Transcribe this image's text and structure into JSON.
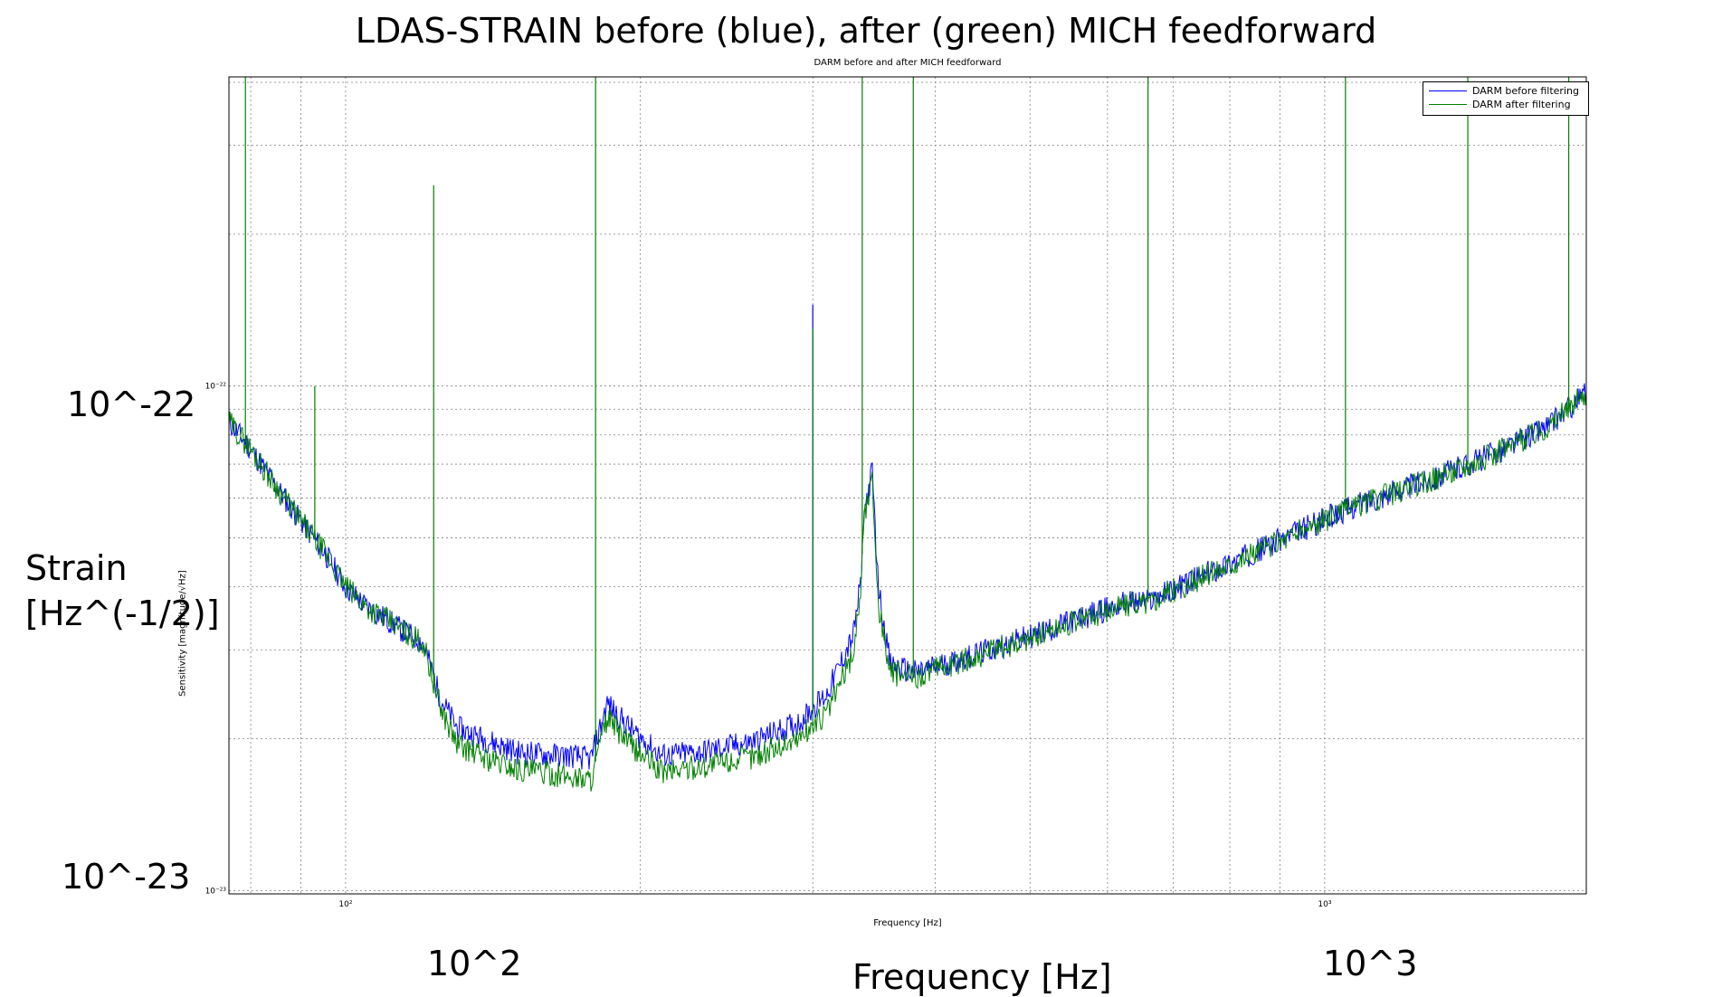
{
  "overlay": {
    "title": "LDAS-STRAIN before (blue), after (green) MICH feedforward",
    "y_tick_major": "10^-22",
    "y_tick_minor": "10^-23",
    "ylabel_line1": "Strain",
    "ylabel_line2": "[Hz^(-1/2)]",
    "x_tick_left": "10^2",
    "x_tick_right": "10^3",
    "xlabel": "Frequency [Hz]"
  },
  "colors": {
    "before": "#0000ff",
    "after": "#007f00",
    "grid": "#808080",
    "axes": "#000000"
  },
  "chart_data": {
    "type": "line",
    "title": "DARM before and after MICH feedforward",
    "xlabel": "Frequency [Hz]",
    "ylabel": "Sensitivity [magnitude/√Hz]",
    "x_scale": "log",
    "y_scale": "log",
    "xlim": [
      76,
      1850
    ],
    "ylim": [
      9.85e-24,
      4.1e-22
    ],
    "x_tick_labels": [
      "10²",
      "10³"
    ],
    "y_tick_labels": [
      "10⁻²²",
      "10⁻²³"
    ],
    "grid": true,
    "legend_position": "top-right",
    "series": [
      {
        "name": "DARM before filtering",
        "x": [
          76,
          80,
          85,
          90,
          95,
          100,
          105,
          110,
          115,
          120,
          125,
          130,
          140,
          150,
          160,
          170,
          178,
          185,
          195,
          210,
          230,
          260,
          290,
          310,
          330,
          336,
          338,
          345,
          350,
          360,
          380,
          420,
          480,
          560,
          620,
          660,
          700,
          800,
          900,
          1000,
          1100,
          1300,
          1500,
          1700,
          1850
        ],
        "y": [
          8.5e-23,
          7.5e-23,
          6.3e-23,
          5.4e-23,
          4.7e-23,
          4e-23,
          3.65e-23,
          3.45e-23,
          3.25e-23,
          3.1e-23,
          2.4e-23,
          2.1e-23,
          1.98e-23,
          1.88e-23,
          1.86e-23,
          1.85e-23,
          1.82e-23,
          2.35e-23,
          2.1e-23,
          1.85e-23,
          1.88e-23,
          1.97e-23,
          2.15e-23,
          2.45e-23,
          3.2e-23,
          4.1e-23,
          5.5e-23,
          6.8e-23,
          4e-23,
          2.8e-23,
          2.7e-23,
          2.85e-23,
          3.1e-23,
          3.45e-23,
          3.7e-23,
          3.75e-23,
          3.95e-23,
          4.45e-23,
          4.95e-23,
          5.45e-23,
          5.9e-23,
          6.6e-23,
          7.4e-23,
          8.4e-23,
          9.7e-23
        ]
      },
      {
        "name": "DARM after filtering",
        "x": [
          76,
          80,
          85,
          90,
          95,
          100,
          105,
          110,
          115,
          120,
          125,
          130,
          140,
          150,
          160,
          170,
          178,
          185,
          195,
          210,
          230,
          260,
          290,
          310,
          330,
          336,
          338,
          345,
          350,
          360,
          380,
          420,
          480,
          560,
          620,
          660,
          700,
          800,
          900,
          1000,
          1100,
          1300,
          1500,
          1700,
          1850
        ],
        "y": [
          8.5e-23,
          7.5e-23,
          6.3e-23,
          5.4e-23,
          4.7e-23,
          4e-23,
          3.65e-23,
          3.45e-23,
          3.25e-23,
          3.1e-23,
          2.3e-23,
          1.95e-23,
          1.82e-23,
          1.74e-23,
          1.71e-23,
          1.68e-23,
          1.66e-23,
          2.2e-23,
          1.95e-23,
          1.72e-23,
          1.76e-23,
          1.84e-23,
          2e-23,
          2.25e-23,
          2.95e-23,
          4e-23,
          5.4e-23,
          6.6e-23,
          3.7e-23,
          2.7e-23,
          2.65e-23,
          2.82e-23,
          3.08e-23,
          3.43e-23,
          3.68e-23,
          3.73e-23,
          3.93e-23,
          4.43e-23,
          4.93e-23,
          5.43e-23,
          5.88e-23,
          6.58e-23,
          7.38e-23,
          8.38e-23,
          9.68e-23
        ]
      }
    ],
    "spikes_after": [
      {
        "x": 79,
        "y": 4.1e-22
      },
      {
        "x": 93,
        "y": 1e-22
      },
      {
        "x": 123,
        "y": 2.5e-22
      },
      {
        "x": 180,
        "y": 4.1e-22
      },
      {
        "x": 300,
        "y": 1.3e-22
      },
      {
        "x": 337,
        "y": 4.1e-22
      },
      {
        "x": 380,
        "y": 4.1e-22
      },
      {
        "x": 660,
        "y": 4.1e-22
      },
      {
        "x": 1050,
        "y": 4.1e-22
      },
      {
        "x": 1400,
        "y": 4.1e-22
      },
      {
        "x": 1775,
        "y": 4.1e-22
      }
    ],
    "spikes_before": [
      {
        "x": 300,
        "y": 1.45e-22
      }
    ]
  }
}
